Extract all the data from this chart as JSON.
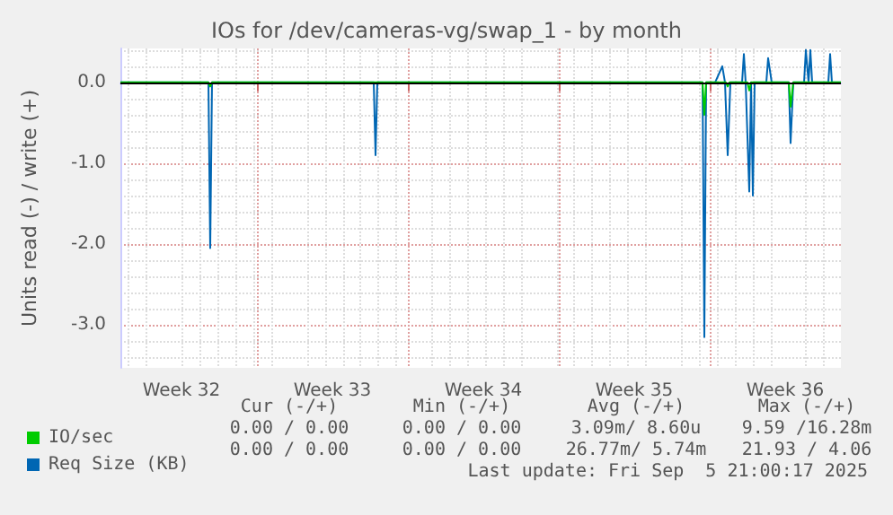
{
  "chart_data": {
    "type": "line",
    "title": "IOs for /dev/cameras-vg/swap_1 - by month",
    "ylabel": "Units read (-) / write (+)",
    "xlim": [
      "2025-08-04T16:00",
      "2025-09-07T02:00"
    ],
    "xticks": [
      {
        "value": "2025-08-07T12:00",
        "label": "Week 32"
      },
      {
        "value": "2025-08-11",
        "label": null
      },
      {
        "value": "2025-08-14T12:00",
        "label": "Week 33"
      },
      {
        "value": "2025-08-18",
        "label": null
      },
      {
        "value": "2025-08-21T12:00",
        "label": "Week 34"
      },
      {
        "value": "2025-08-25",
        "label": null
      },
      {
        "value": "2025-08-28T12:00",
        "label": "Week 35"
      },
      {
        "value": "2025-09-01",
        "label": null
      },
      {
        "value": "2025-09-04T12:00",
        "label": "Week 36"
      }
    ],
    "ylim": [
      -3.53,
      0.42
    ],
    "yticks": [
      {
        "value": -3,
        "label": "-3.0"
      },
      {
        "value": -2,
        "label": "-2.0"
      },
      {
        "value": -1,
        "label": "-1.0"
      },
      {
        "value": 0,
        "label": "0.0"
      }
    ],
    "grid": true,
    "legend": "bottom left",
    "series": [
      {
        "name": "Req Size (KB)",
        "color": "#0066b3",
        "x": [
          "2025-08-04T16:00",
          "2025-08-08T18:00",
          "2025-08-08T20:00",
          "2025-08-08T22:00",
          "2025-08-16T10:00",
          "2025-08-16T12:00",
          "2025-08-16T14:00",
          "2025-08-31T16:00",
          "2025-08-31T18:00",
          "2025-08-31T20:00",
          "2025-09-01T06:00",
          "2025-09-01T14:00",
          "2025-09-01T17:00",
          "2025-09-01T20:00",
          "2025-09-01T23:00",
          "2025-09-02T12:00",
          "2025-09-02T14:00",
          "2025-09-02T16:00",
          "2025-09-02T20:00",
          "2025-09-02T22:00",
          "2025-09-03T00:00",
          "2025-09-03T02:00",
          "2025-09-03T15:00",
          "2025-09-03T17:00",
          "2025-09-03T21:00",
          "2025-09-04T16:00",
          "2025-09-04T18:00",
          "2025-09-04T21:00",
          "2025-09-05T09:00",
          "2025-09-05T11:00",
          "2025-09-05T14:00",
          "2025-09-05T16:00",
          "2025-09-05T18:00",
          "2025-09-06T12:00",
          "2025-09-06T14:00",
          "2025-09-06T16:00",
          "2025-09-07T02:00"
        ],
        "values": [
          0,
          0,
          -2.05,
          0,
          0,
          -0.9,
          0,
          0,
          -3.15,
          0,
          0,
          0.2,
          0,
          -0.9,
          0,
          0,
          0.35,
          0,
          -1.35,
          0,
          -1.4,
          0,
          0,
          0.3,
          0,
          0,
          -0.75,
          0,
          0,
          0.4,
          0,
          0.4,
          0,
          0,
          0.35,
          0,
          0
        ]
      },
      {
        "name": "IO/sec",
        "color": "#00cc00",
        "x": [
          "2025-08-04T16:00",
          "2025-08-08T18:00",
          "2025-08-08T20:00",
          "2025-08-08T22:00",
          "2025-08-31T16:00",
          "2025-08-31T18:00",
          "2025-08-31T20:00",
          "2025-09-01T18:00",
          "2025-09-01T20:00",
          "2025-09-01T22:00",
          "2025-09-02T18:00",
          "2025-09-02T20:00",
          "2025-09-02T22:00",
          "2025-09-04T16:00",
          "2025-09-04T18:00",
          "2025-09-04T21:00",
          "2025-09-07T02:00"
        ],
        "values": [
          0,
          0,
          -0.05,
          0,
          0,
          -0.4,
          0,
          0,
          -0.05,
          0,
          0,
          -0.1,
          0,
          0,
          -0.3,
          0,
          0
        ]
      }
    ],
    "ref_lines": [
      {
        "axis": "y",
        "value": 0,
        "color": "#000000"
      }
    ],
    "annotations": [
      "Cur (-/+)",
      "Min (-/+)",
      "Avg (-/+)",
      "Max (-/+)",
      "0.00 / 0.00",
      "0.00 / 0.00",
      "3.09m/ 8.60u",
      "9.59 /16.28m",
      "0.00 / 0.00",
      "0.00 / 0.00",
      "26.77m/ 5.74m",
      "21.93 / 4.06",
      "Last update: Fri Sep  5 21:00:17 2025"
    ]
  }
}
